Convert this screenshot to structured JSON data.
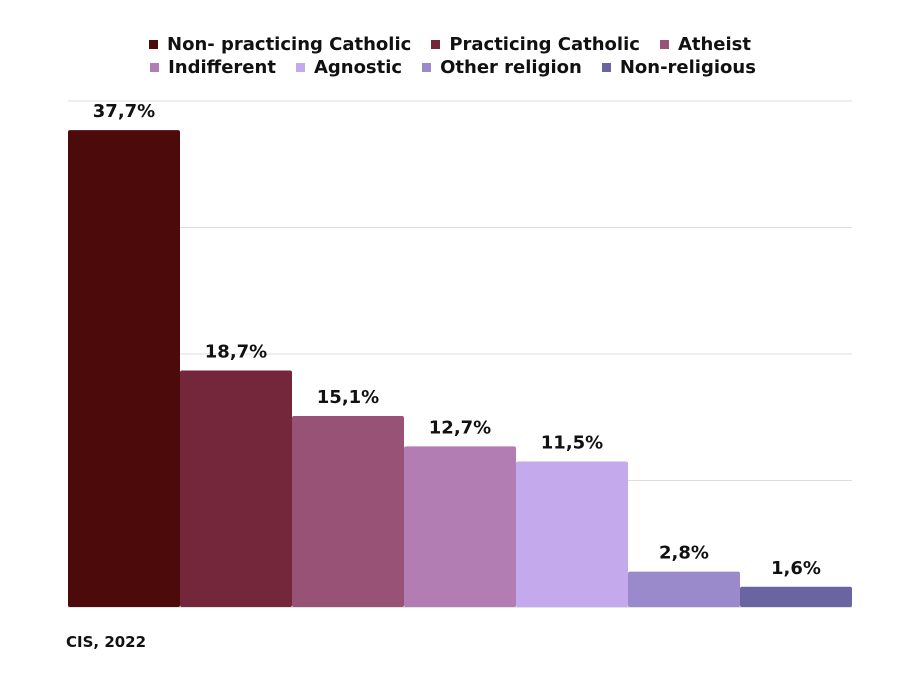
{
  "chart_data": {
    "type": "bar",
    "categories": [
      "Non- practicing Catholic",
      "Practicing Catholic",
      "Atheist",
      "Indifferent",
      "Agnostic",
      "Other religion",
      "Non-religious"
    ],
    "values": [
      37.7,
      18.7,
      15.1,
      12.7,
      11.5,
      2.8,
      1.6
    ],
    "data_labels": [
      "37,7%",
      "18,7%",
      "15,1%",
      "12,7%",
      "11,5%",
      "2,8%",
      "1,6%"
    ],
    "colors": [
      "#4c0a0b",
      "#74273b",
      "#985276",
      "#b27db2",
      "#c4aaed",
      "#9a8acb",
      "#6a64a0"
    ],
    "ylim": [
      0,
      40
    ],
    "gridlines": [
      0,
      10,
      20,
      30,
      40
    ],
    "grid": true,
    "legend_position": "top",
    "title": "",
    "xlabel": "",
    "ylabel": ""
  },
  "legend": {
    "row1": [
      {
        "label": "Non- practicing Catholic",
        "color": "#4c0a0b"
      },
      {
        "label": "Practicing Catholic",
        "color": "#74273b"
      },
      {
        "label": "Atheist",
        "color": "#985276"
      }
    ],
    "row2": [
      {
        "label": "Indifferent",
        "color": "#b27db2"
      },
      {
        "label": "Agnostic",
        "color": "#c4aaed"
      },
      {
        "label": "Other religion",
        "color": "#9a8acb"
      },
      {
        "label": "Non-religious",
        "color": "#6a64a0"
      }
    ]
  },
  "source": "CIS, 2022"
}
